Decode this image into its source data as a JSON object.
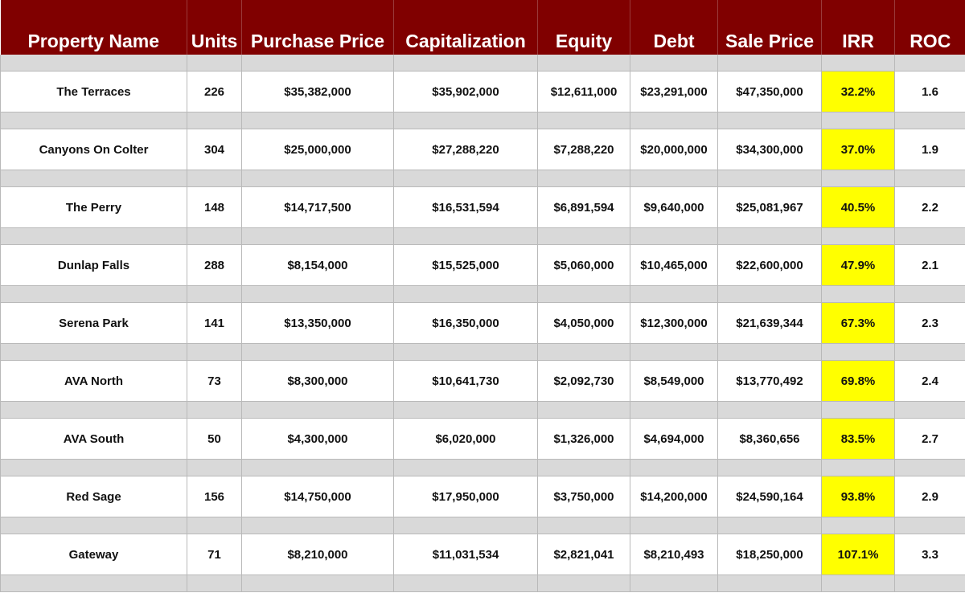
{
  "columns": [
    "Property Name",
    "Units",
    "Purchase Price",
    "Capitalization",
    "Equity",
    "Debt",
    "Sale Price",
    "IRR",
    "ROC"
  ],
  "rows": [
    [
      "The Terraces",
      "226",
      "$35,382,000",
      "$35,902,000",
      "$12,611,000",
      "$23,291,000",
      "$47,350,000",
      "32.2%",
      "1.6"
    ],
    [
      "Canyons On Colter",
      "304",
      "$25,000,000",
      "$27,288,220",
      "$7,288,220",
      "$20,000,000",
      "$34,300,000",
      "37.0%",
      "1.9"
    ],
    [
      "The Perry",
      "148",
      "$14,717,500",
      "$16,531,594",
      "$6,891,594",
      "$9,640,000",
      "$25,081,967",
      "40.5%",
      "2.2"
    ],
    [
      "Dunlap Falls",
      "288",
      "$8,154,000",
      "$15,525,000",
      "$5,060,000",
      "$10,465,000",
      "$22,600,000",
      "47.9%",
      "2.1"
    ],
    [
      "Serena Park",
      "141",
      "$13,350,000",
      "$16,350,000",
      "$4,050,000",
      "$12,300,000",
      "$21,639,344",
      "67.3%",
      "2.3"
    ],
    [
      "AVA North",
      "73",
      "$8,300,000",
      "$10,641,730",
      "$2,092,730",
      "$8,549,000",
      "$13,770,492",
      "69.8%",
      "2.4"
    ],
    [
      "AVA South",
      "50",
      "$4,300,000",
      "$6,020,000",
      "$1,326,000",
      "$4,694,000",
      "$8,360,656",
      "83.5%",
      "2.7"
    ],
    [
      "Red Sage",
      "156",
      "$14,750,000",
      "$17,950,000",
      "$3,750,000",
      "$14,200,000",
      "$24,590,164",
      "93.8%",
      "2.9"
    ],
    [
      "Gateway",
      "71",
      "$8,210,000",
      "$11,031,534",
      "$2,821,041",
      "$8,210,493",
      "$18,250,000",
      "107.1%",
      "3.3"
    ]
  ],
  "colors": {
    "header_background": "#800000",
    "header_text": "#ffffff",
    "spacer_row": "#d9d9d9",
    "irr_highlight": "#ffff00"
  }
}
